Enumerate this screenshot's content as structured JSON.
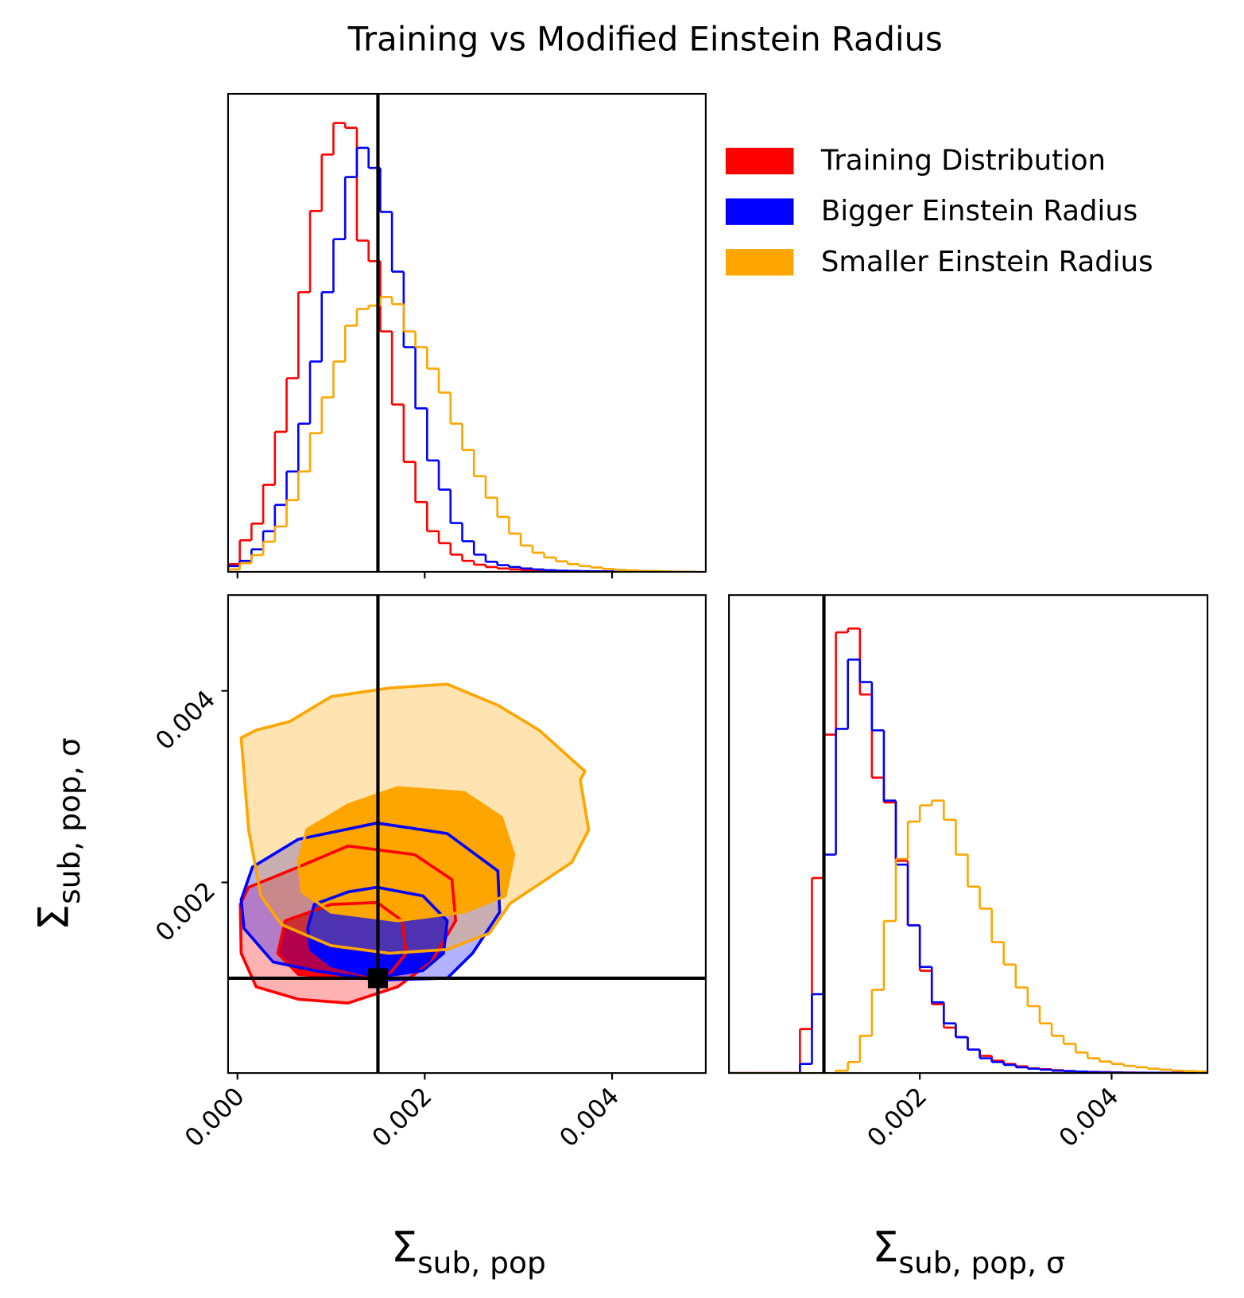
{
  "chart_data": {
    "type": "corner",
    "title": "Training vs Modified Einstein Radius",
    "parameters": [
      {
        "symbol": "Σ",
        "subscript": "sub, pop"
      },
      {
        "symbol": "Σ",
        "subscript": "sub, pop, σ"
      }
    ],
    "ranges": [
      [
        -0.0001,
        0.005
      ],
      [
        1e-05,
        0.005
      ]
    ],
    "ticks": [
      [
        {
          "value": 0,
          "label": "0.000"
        },
        {
          "value": 0.002,
          "label": "0.002"
        },
        {
          "value": 0.004,
          "label": "0.004"
        }
      ],
      [
        {
          "value": 0.002,
          "label": "0.002"
        },
        {
          "value": 0.004,
          "label": "0.004"
        }
      ]
    ],
    "truths": [
      0.0015,
      0.001
    ],
    "hist_ylim": [
      0,
      100
    ],
    "hist_bins": [
      [
        -0.0001,
        2.5e-05,
        0.00015,
        0.000275,
        0.0004,
        0.000525,
        0.00065,
        0.000775,
        0.0009,
        0.001025,
        0.00115,
        0.001275,
        0.0014,
        0.001525,
        0.00165,
        0.001775,
        0.0019,
        0.002025,
        0.00215,
        0.002275,
        0.0024,
        0.002525,
        0.00265,
        0.002775,
        0.0029,
        0.003025,
        0.00315,
        0.003275,
        0.0034,
        0.003525,
        0.00365,
        0.003775,
        0.0039,
        0.004025,
        0.00415,
        0.004275,
        0.0044,
        0.004525,
        0.00465,
        0.004775,
        0.0049
      ],
      [
        0,
        0.000125,
        0.00025,
        0.000375,
        0.0005,
        0.000625,
        0.00075,
        0.000875,
        0.001,
        0.001125,
        0.00125,
        0.001375,
        0.0015,
        0.001625,
        0.00175,
        0.001875,
        0.002,
        0.002125,
        0.00225,
        0.002375,
        0.0025,
        0.002625,
        0.00275,
        0.002875,
        0.003,
        0.003125,
        0.00325,
        0.003375,
        0.0035,
        0.003625,
        0.00375,
        0.003875,
        0.004,
        0.004125,
        0.00425,
        0.004375,
        0.0045,
        0.004625,
        0.00475,
        0.004875,
        0.005
      ]
    ],
    "legend": "upper right",
    "series": [
      {
        "name": "Training Distribution",
        "color": "#ff0000",
        "hist": [
          [
            1.6,
            6.6,
            10.1,
            18.2,
            29.3,
            40.5,
            58.5,
            75.5,
            87.3,
            93.9,
            92.9,
            69.3,
            65,
            50.3,
            35,
            23,
            14.6,
            8.5,
            6,
            3.6,
            2.3,
            1.5,
            1,
            0.7,
            0.5,
            0.35,
            0.25,
            0.2,
            0.15,
            0.1,
            0.08,
            0.06,
            0.05,
            0.04,
            0.03,
            0.02,
            0.02,
            0.01,
            0.01,
            0.01
          ],
          [
            0,
            0,
            0,
            0,
            0,
            0,
            9.2,
            40.8,
            70.8,
            92.2,
            93,
            79.2,
            61.8,
            56.6,
            44.4,
            30.9,
            21.4,
            14.4,
            9.5,
            7.5,
            4.9,
            3.6,
            2.6,
            1.9,
            1.4,
            1,
            0.8,
            0.6,
            0.4,
            0.3,
            0.25,
            0.2,
            0.15,
            0.1,
            0.08,
            0.06,
            0.05,
            0.04,
            0.03,
            0.02
          ]
        ],
        "contours": [
          {
            "x": [
              3e-05,
              0.00012,
              0.00065,
              0.00118,
              0.00189,
              0.00229,
              0.00233,
              0.00207,
              0.00171,
              0.00118,
              0.00065,
              0.0002,
              4e-05
            ],
            "y": [
              0.00177,
              0.00195,
              0.00216,
              0.00238,
              0.00229,
              0.00203,
              0.0016,
              0.00117,
              0.00091,
              0.00074,
              0.00078,
              0.00091,
              0.00126
            ]
          },
          {
            "x": [
              0.00043,
              0.00051,
              0.001,
              0.00149,
              0.00176,
              0.0018,
              0.00162,
              0.00118,
              0.00065
            ],
            "y": [
              0.00126,
              0.0016,
              0.00177,
              0.00179,
              0.0016,
              0.00126,
              0.00104,
              0.001,
              0.00104
            ]
          }
        ]
      },
      {
        "name": "Bigger Einstein Radius",
        "color": "#0000ff",
        "hist": [
          [
            1.2,
            2.3,
            4.7,
            8.5,
            14,
            21,
            31,
            44,
            58.5,
            69.6,
            82.6,
            88.7,
            84.5,
            75.3,
            62.8,
            47,
            34.2,
            23.3,
            17.2,
            10.2,
            6.4,
            3.6,
            2.1,
            1.4,
            1,
            0.7,
            0.5,
            0.35,
            0.25,
            0.2,
            0.15,
            0.12,
            0.1,
            0.08,
            0.06,
            0.05,
            0.04,
            0.03,
            0.02,
            0.01
          ],
          [
            0,
            0,
            0,
            0,
            0,
            0,
            1.9,
            16.5,
            45.7,
            72,
            86.5,
            81.8,
            71.7,
            57,
            43.6,
            30.9,
            22.2,
            14.8,
            10.4,
            7.5,
            4.9,
            3.1,
            2.3,
            1.7,
            1.2,
            0.9,
            0.7,
            0.5,
            0.4,
            0.3,
            0.2,
            0.15,
            0.1,
            0.08,
            0.06,
            0.05,
            0.04,
            0.03,
            0.02,
            0.01
          ]
        ],
        "contours": [
          {
            "x": [
              4e-05,
              0.00016,
              0.00065,
              0.00149,
              0.00224,
              0.00278,
              0.0028,
              0.00251,
              0.00224,
              0.00149,
              0.00082,
              0.00038,
              7e-05
            ],
            "y": [
              0.00182,
              0.00216,
              0.00245,
              0.00262,
              0.00251,
              0.00212,
              0.00169,
              0.00126,
              0.001,
              0.00098,
              0.00108,
              0.00117,
              0.00152
            ]
          },
          {
            "x": [
              0.00075,
              0.00082,
              0.00118,
              0.00149,
              0.00198,
              0.00224,
              0.0022,
              0.00198,
              0.00149,
              0.001,
              0.00078
            ],
            "y": [
              0.00152,
              0.00177,
              0.0019,
              0.00195,
              0.00186,
              0.0016,
              0.00126,
              0.00108,
              0.00101,
              0.00113,
              0.0013
            ]
          }
        ]
      },
      {
        "name": "Smaller Einstein Radius",
        "color": "#ffa500",
        "hist": [
          [
            0.5,
            1.8,
            3.5,
            6.3,
            9.5,
            15,
            21,
            29,
            36.5,
            44,
            51.5,
            55,
            55.7,
            57.5,
            56,
            50.3,
            47,
            42.5,
            37.5,
            31,
            25.5,
            20,
            15.5,
            11.5,
            8,
            5.5,
            4,
            3,
            2.2,
            1.6,
            1.2,
            0.9,
            0.6,
            0.4,
            0.3,
            0.2,
            0.15,
            0.1,
            0.05,
            0.03
          ],
          [
            0,
            0,
            0,
            0,
            0,
            0,
            0,
            0,
            0,
            0.5,
            2.3,
            7.8,
            17.4,
            31.8,
            44.8,
            52.6,
            56,
            57,
            53,
            45.7,
            39,
            34.4,
            27.4,
            22.7,
            17.9,
            14,
            10.4,
            7.8,
            6.1,
            4.3,
            3.1,
            2.4,
            1.9,
            1.5,
            1.2,
            0.9,
            0.7,
            0.5,
            0.4,
            0.3
          ]
        ],
        "contours": [
          {
            "x": [
              4e-05,
              0.00012,
              0.00025,
              0.00047,
              0.001,
              0.00162,
              0.00224,
              0.00269,
              0.00291,
              0.00357,
              0.00375,
              0.00366,
              0.00371,
              0.00322,
              0.00278,
              0.00224,
              0.00162,
              0.001,
              0.00056,
              0.0002
            ],
            "y": [
              0.00351,
              0.00255,
              0.00186,
              0.00156,
              0.00134,
              0.00126,
              0.0013,
              0.00147,
              0.00178,
              0.00221,
              0.00255,
              0.00307,
              0.00316,
              0.00359,
              0.00385,
              0.00407,
              0.00403,
              0.00394,
              0.00368,
              0.00359
            ]
          },
          {
            "x": [
              0.00065,
              0.00074,
              0.00118,
              0.00171,
              0.00242,
              0.00282,
              0.00295,
              0.00286,
              0.00242,
              0.00171,
              0.001,
              0.00069
            ],
            "y": [
              0.00221,
              0.00255,
              0.00281,
              0.00299,
              0.00294,
              0.00268,
              0.00229,
              0.00186,
              0.00169,
              0.0016,
              0.00169,
              0.0019
            ]
          }
        ]
      }
    ]
  }
}
